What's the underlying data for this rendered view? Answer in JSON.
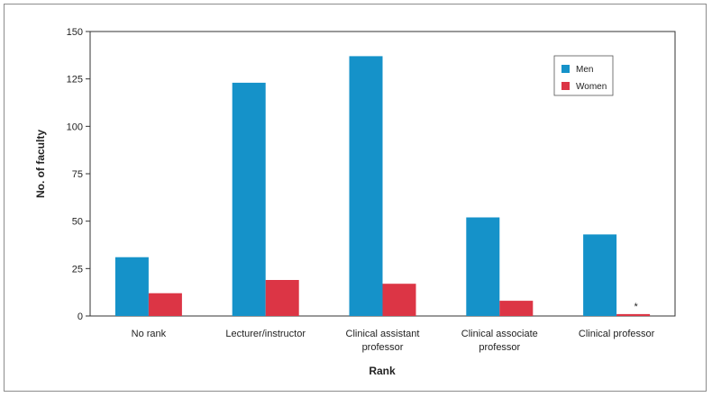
{
  "chart_data": {
    "type": "bar",
    "title": "",
    "xlabel": "Rank",
    "ylabel": "No. of faculty",
    "ylim": [
      0,
      150
    ],
    "yticks": [
      0,
      25,
      50,
      75,
      100,
      125,
      150
    ],
    "categories": [
      [
        "No rank"
      ],
      [
        "Lecturer/instructor"
      ],
      [
        "Clinical assistant",
        "professor"
      ],
      [
        "Clinical associate",
        "professor"
      ],
      [
        "Clinical professor"
      ]
    ],
    "series": [
      {
        "name": "Men",
        "color": "#1592c9",
        "values": [
          31,
          123,
          137,
          52,
          43
        ]
      },
      {
        "name": "Women",
        "color": "#dc3545",
        "values": [
          12,
          19,
          17,
          8,
          1
        ]
      }
    ],
    "annotations": [
      {
        "text": "*",
        "series": "Women",
        "category_index": 4
      }
    ],
    "grid": false,
    "legend_position": "top-right"
  }
}
